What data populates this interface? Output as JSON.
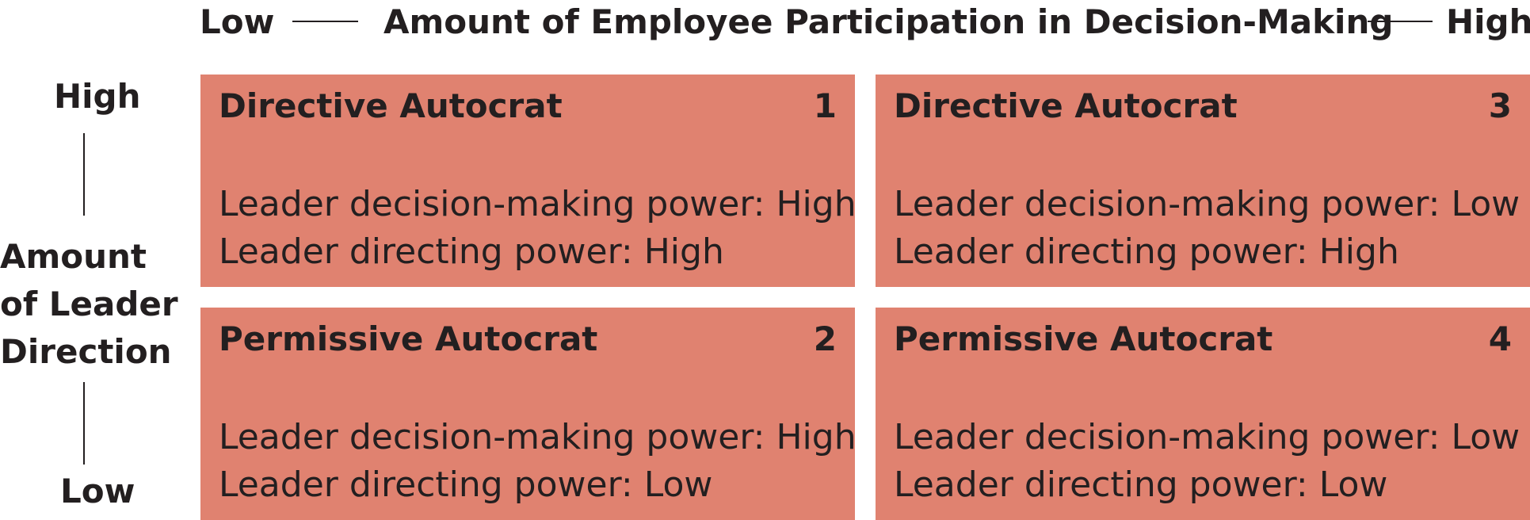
{
  "top_axis": {
    "low_label": "Low",
    "title": "Amount of Employee Participation in Decision-Making",
    "high_label": "High"
  },
  "left_axis": {
    "high_label": "High",
    "title_lines": [
      "Amount",
      "of Leader",
      "Direction"
    ],
    "low_label": "Low"
  },
  "quadrants": [
    {
      "title": "Directive Autocrat",
      "number": "1",
      "line1": "Leader decision-making power: High",
      "line2": "Leader directing power: High"
    },
    {
      "title": "Directive Autocrat",
      "number": "3",
      "line1": "Leader decision-making power: Low",
      "line2": "Leader directing power: High"
    },
    {
      "title": "Permissive Autocrat",
      "number": "2",
      "line1": "Leader decision-making power: High",
      "line2": "Leader directing power: Low"
    },
    {
      "title": "Permissive Autocrat",
      "number": "4",
      "line1": "Leader decision-making power: Low",
      "line2": "Leader directing power: Low"
    }
  ],
  "colors": {
    "quadrant_fill": "#e08270",
    "text": "#231f20"
  }
}
